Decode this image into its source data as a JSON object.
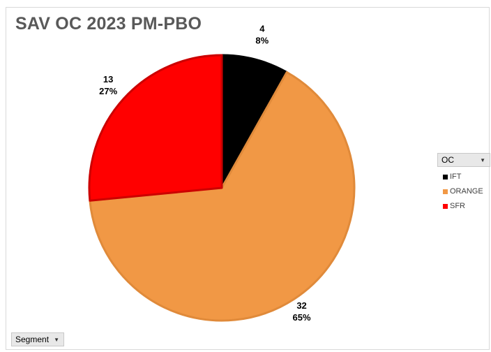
{
  "chart_data": {
    "type": "pie",
    "title": "SAV OC 2023 PM-PBO",
    "categories": [
      "IFT",
      "ORANGE",
      "SFR"
    ],
    "values": [
      4,
      32,
      13
    ],
    "percent_labels": [
      "8%",
      "65%",
      "27%"
    ],
    "colors": [
      "#000000",
      "#f19845",
      "#ff0000"
    ],
    "legend_placement": "right"
  },
  "legend": {
    "filter_label": "OC",
    "items": [
      {
        "label": "IFT",
        "color": "#000000"
      },
      {
        "label": "ORANGE",
        "color": "#f19845"
      },
      {
        "label": "SFR",
        "color": "#ff0000"
      }
    ]
  },
  "filters": {
    "segment_label": "Segment"
  }
}
